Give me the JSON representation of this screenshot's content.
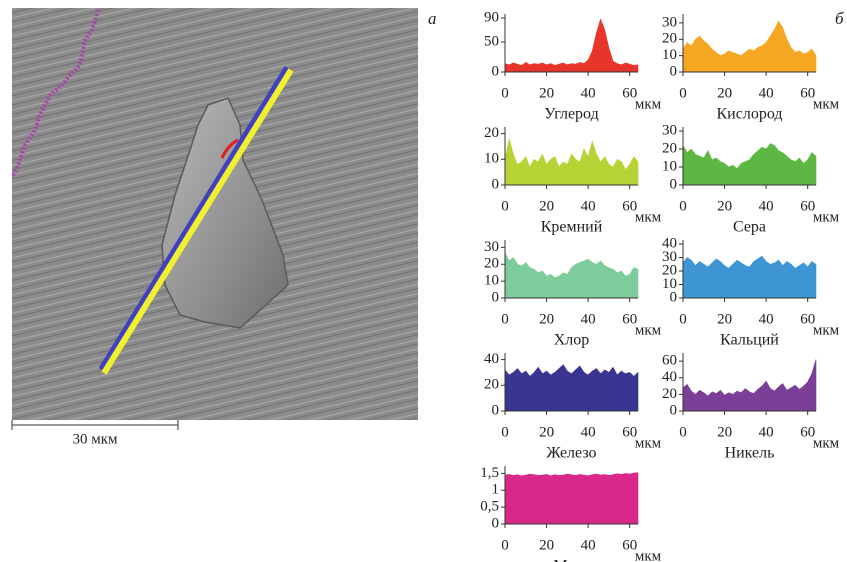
{
  "panel_labels": [
    "а",
    "б"
  ],
  "scale_bar_label": "30 мкм",
  "chart_data": [
    {
      "type": "area",
      "title": "Углерод",
      "xlabel": "мкм",
      "color": "#e8352a",
      "x": [
        0,
        2,
        4,
        6,
        8,
        10,
        12,
        14,
        16,
        18,
        20,
        22,
        24,
        26,
        28,
        30,
        32,
        34,
        36,
        38,
        40,
        42,
        44,
        46,
        48,
        50,
        52,
        54,
        56,
        58,
        60,
        62,
        64
      ],
      "values": [
        14,
        12,
        15,
        13,
        11,
        16,
        12,
        14,
        13,
        15,
        12,
        14,
        11,
        13,
        15,
        12,
        14,
        13,
        16,
        14,
        20,
        35,
        65,
        88,
        70,
        40,
        18,
        14,
        12,
        15,
        13,
        11,
        12
      ],
      "xlim": [
        0,
        64
      ],
      "xticks": [
        0,
        20,
        40,
        60
      ],
      "ylim": [
        0,
        90
      ],
      "yticks": [
        0,
        50,
        90
      ]
    },
    {
      "type": "area",
      "title": "Кислород",
      "xlabel": "мкм",
      "color": "#f5a623",
      "x": [
        0,
        2,
        4,
        6,
        8,
        10,
        12,
        14,
        16,
        18,
        20,
        22,
        24,
        26,
        28,
        30,
        32,
        34,
        36,
        38,
        40,
        42,
        44,
        46,
        48,
        50,
        52,
        54,
        56,
        58,
        60,
        62,
        64
      ],
      "values": [
        14,
        18,
        16,
        20,
        22,
        19,
        17,
        14,
        12,
        10,
        11,
        13,
        12,
        11,
        10,
        12,
        14,
        13,
        15,
        16,
        18,
        22,
        26,
        31,
        27,
        20,
        15,
        12,
        13,
        11,
        12,
        14,
        10
      ],
      "xlim": [
        0,
        64
      ],
      "xticks": [
        0,
        20,
        40,
        60
      ],
      "ylim": [
        0,
        33
      ],
      "yticks": [
        0,
        10,
        20,
        30
      ]
    },
    {
      "type": "area",
      "title": "Кремний",
      "xlabel": "мкм",
      "color": "#b5d334",
      "x": [
        0,
        2,
        4,
        6,
        8,
        10,
        12,
        14,
        16,
        18,
        20,
        22,
        24,
        26,
        28,
        30,
        32,
        34,
        36,
        38,
        40,
        42,
        44,
        46,
        48,
        50,
        52,
        54,
        56,
        58,
        60,
        62,
        64
      ],
      "values": [
        10,
        18,
        12,
        8,
        9,
        11,
        7,
        10,
        9,
        12,
        8,
        10,
        11,
        7,
        9,
        8,
        12,
        10,
        9,
        14,
        11,
        17,
        12,
        9,
        11,
        8,
        7,
        10,
        9,
        6,
        8,
        11,
        9
      ],
      "xlim": [
        0,
        64
      ],
      "xticks": [
        0,
        20,
        40,
        60
      ],
      "ylim": [
        0,
        21
      ],
      "yticks": [
        0,
        10,
        20
      ]
    },
    {
      "type": "area",
      "title": "Сера",
      "xlabel": "мкм",
      "color": "#5db843",
      "x": [
        0,
        2,
        4,
        6,
        8,
        10,
        12,
        14,
        16,
        18,
        20,
        22,
        24,
        26,
        28,
        30,
        32,
        34,
        36,
        38,
        40,
        42,
        44,
        46,
        48,
        50,
        52,
        54,
        56,
        58,
        60,
        62,
        64
      ],
      "values": [
        22,
        18,
        20,
        17,
        16,
        15,
        19,
        14,
        15,
        13,
        12,
        10,
        11,
        9,
        12,
        13,
        14,
        17,
        19,
        21,
        20,
        23,
        22,
        19,
        18,
        16,
        14,
        13,
        15,
        12,
        14,
        18,
        16
      ],
      "xlim": [
        0,
        64
      ],
      "xticks": [
        0,
        20,
        40,
        60
      ],
      "ylim": [
        0,
        30
      ],
      "yticks": [
        0,
        10,
        20,
        30
      ]
    },
    {
      "type": "area",
      "title": "Хлор",
      "xlabel": "мкм",
      "color": "#7dcc9b",
      "x": [
        0,
        2,
        4,
        6,
        8,
        10,
        12,
        14,
        16,
        18,
        20,
        22,
        24,
        26,
        28,
        30,
        32,
        34,
        36,
        38,
        40,
        42,
        44,
        46,
        48,
        50,
        52,
        54,
        56,
        58,
        60,
        62,
        64
      ],
      "values": [
        27,
        22,
        24,
        20,
        19,
        21,
        18,
        17,
        15,
        16,
        13,
        14,
        12,
        13,
        15,
        14,
        18,
        20,
        21,
        22,
        23,
        21,
        20,
        22,
        19,
        18,
        17,
        15,
        16,
        13,
        14,
        18,
        17
      ],
      "xlim": [
        0,
        64
      ],
      "xticks": [
        0,
        20,
        40,
        60
      ],
      "ylim": [
        0,
        32
      ],
      "yticks": [
        0,
        10,
        20,
        30
      ]
    },
    {
      "type": "area",
      "title": "Кальций",
      "xlabel": "мкм",
      "color": "#3d95d3",
      "x": [
        0,
        2,
        4,
        6,
        8,
        10,
        12,
        14,
        16,
        18,
        20,
        22,
        24,
        26,
        28,
        30,
        32,
        34,
        36,
        38,
        40,
        42,
        44,
        46,
        48,
        50,
        52,
        54,
        56,
        58,
        60,
        62,
        64
      ],
      "values": [
        26,
        30,
        28,
        24,
        27,
        25,
        23,
        26,
        29,
        27,
        24,
        22,
        25,
        28,
        26,
        24,
        23,
        27,
        29,
        31,
        27,
        25,
        26,
        28,
        24,
        27,
        25,
        22,
        24,
        26,
        23,
        27,
        25
      ],
      "xlim": [
        0,
        64
      ],
      "xticks": [
        0,
        20,
        40,
        60
      ],
      "ylim": [
        0,
        40
      ],
      "yticks": [
        0,
        10,
        20,
        30,
        40
      ]
    },
    {
      "type": "area",
      "title": "Железо",
      "xlabel": "мкм",
      "color": "#3a3591",
      "x": [
        0,
        2,
        4,
        6,
        8,
        10,
        12,
        14,
        16,
        18,
        20,
        22,
        24,
        26,
        28,
        30,
        32,
        34,
        36,
        38,
        40,
        42,
        44,
        46,
        48,
        50,
        52,
        54,
        56,
        58,
        60,
        62,
        64
      ],
      "values": [
        32,
        28,
        30,
        33,
        29,
        31,
        27,
        30,
        34,
        29,
        31,
        28,
        30,
        33,
        36,
        31,
        29,
        32,
        35,
        30,
        28,
        31,
        33,
        29,
        32,
        30,
        34,
        28,
        31,
        29,
        30,
        27,
        30
      ],
      "xlim": [
        0,
        64
      ],
      "xticks": [
        0,
        20,
        40,
        60
      ],
      "ylim": [
        0,
        42
      ],
      "yticks": [
        0,
        20,
        40
      ]
    },
    {
      "type": "area",
      "title": "Никель",
      "xlabel": "мкм",
      "color": "#7b3f98",
      "x": [
        0,
        2,
        4,
        6,
        8,
        10,
        12,
        14,
        16,
        18,
        20,
        22,
        24,
        26,
        28,
        30,
        32,
        34,
        36,
        38,
        40,
        42,
        44,
        46,
        48,
        50,
        52,
        54,
        56,
        58,
        60,
        62,
        64
      ],
      "values": [
        28,
        32,
        24,
        20,
        25,
        22,
        18,
        23,
        21,
        25,
        19,
        22,
        20,
        24,
        22,
        27,
        23,
        21,
        26,
        30,
        36,
        27,
        24,
        29,
        33,
        25,
        28,
        31,
        26,
        30,
        35,
        45,
        62
      ],
      "xlim": [
        0,
        64
      ],
      "xticks": [
        0,
        20,
        40,
        60
      ],
      "ylim": [
        0,
        65
      ],
      "yticks": [
        0,
        20,
        40,
        60
      ]
    },
    {
      "type": "area",
      "title": "Медь",
      "xlabel": "мкм",
      "color": "#d9288a",
      "x": [
        0,
        2,
        4,
        6,
        8,
        10,
        12,
        14,
        16,
        18,
        20,
        22,
        24,
        26,
        28,
        30,
        32,
        34,
        36,
        38,
        40,
        42,
        44,
        46,
        48,
        50,
        52,
        54,
        56,
        58,
        60,
        62,
        64
      ],
      "values": [
        1.45,
        1.47,
        1.44,
        1.46,
        1.43,
        1.45,
        1.48,
        1.46,
        1.44,
        1.45,
        1.47,
        1.43,
        1.46,
        1.44,
        1.45,
        1.48,
        1.46,
        1.44,
        1.47,
        1.45,
        1.43,
        1.46,
        1.48,
        1.45,
        1.47,
        1.44,
        1.46,
        1.49,
        1.47,
        1.5,
        1.48,
        1.51,
        1.52
      ],
      "xlim": [
        0,
        64
      ],
      "xticks": [
        0,
        20,
        40,
        60
      ],
      "ylim": [
        0,
        1.6
      ],
      "yticks": [
        0,
        {
          "value": 0.5,
          "label": "0,5"
        },
        1,
        {
          "value": 1.5,
          "label": "1,5"
        }
      ]
    }
  ]
}
